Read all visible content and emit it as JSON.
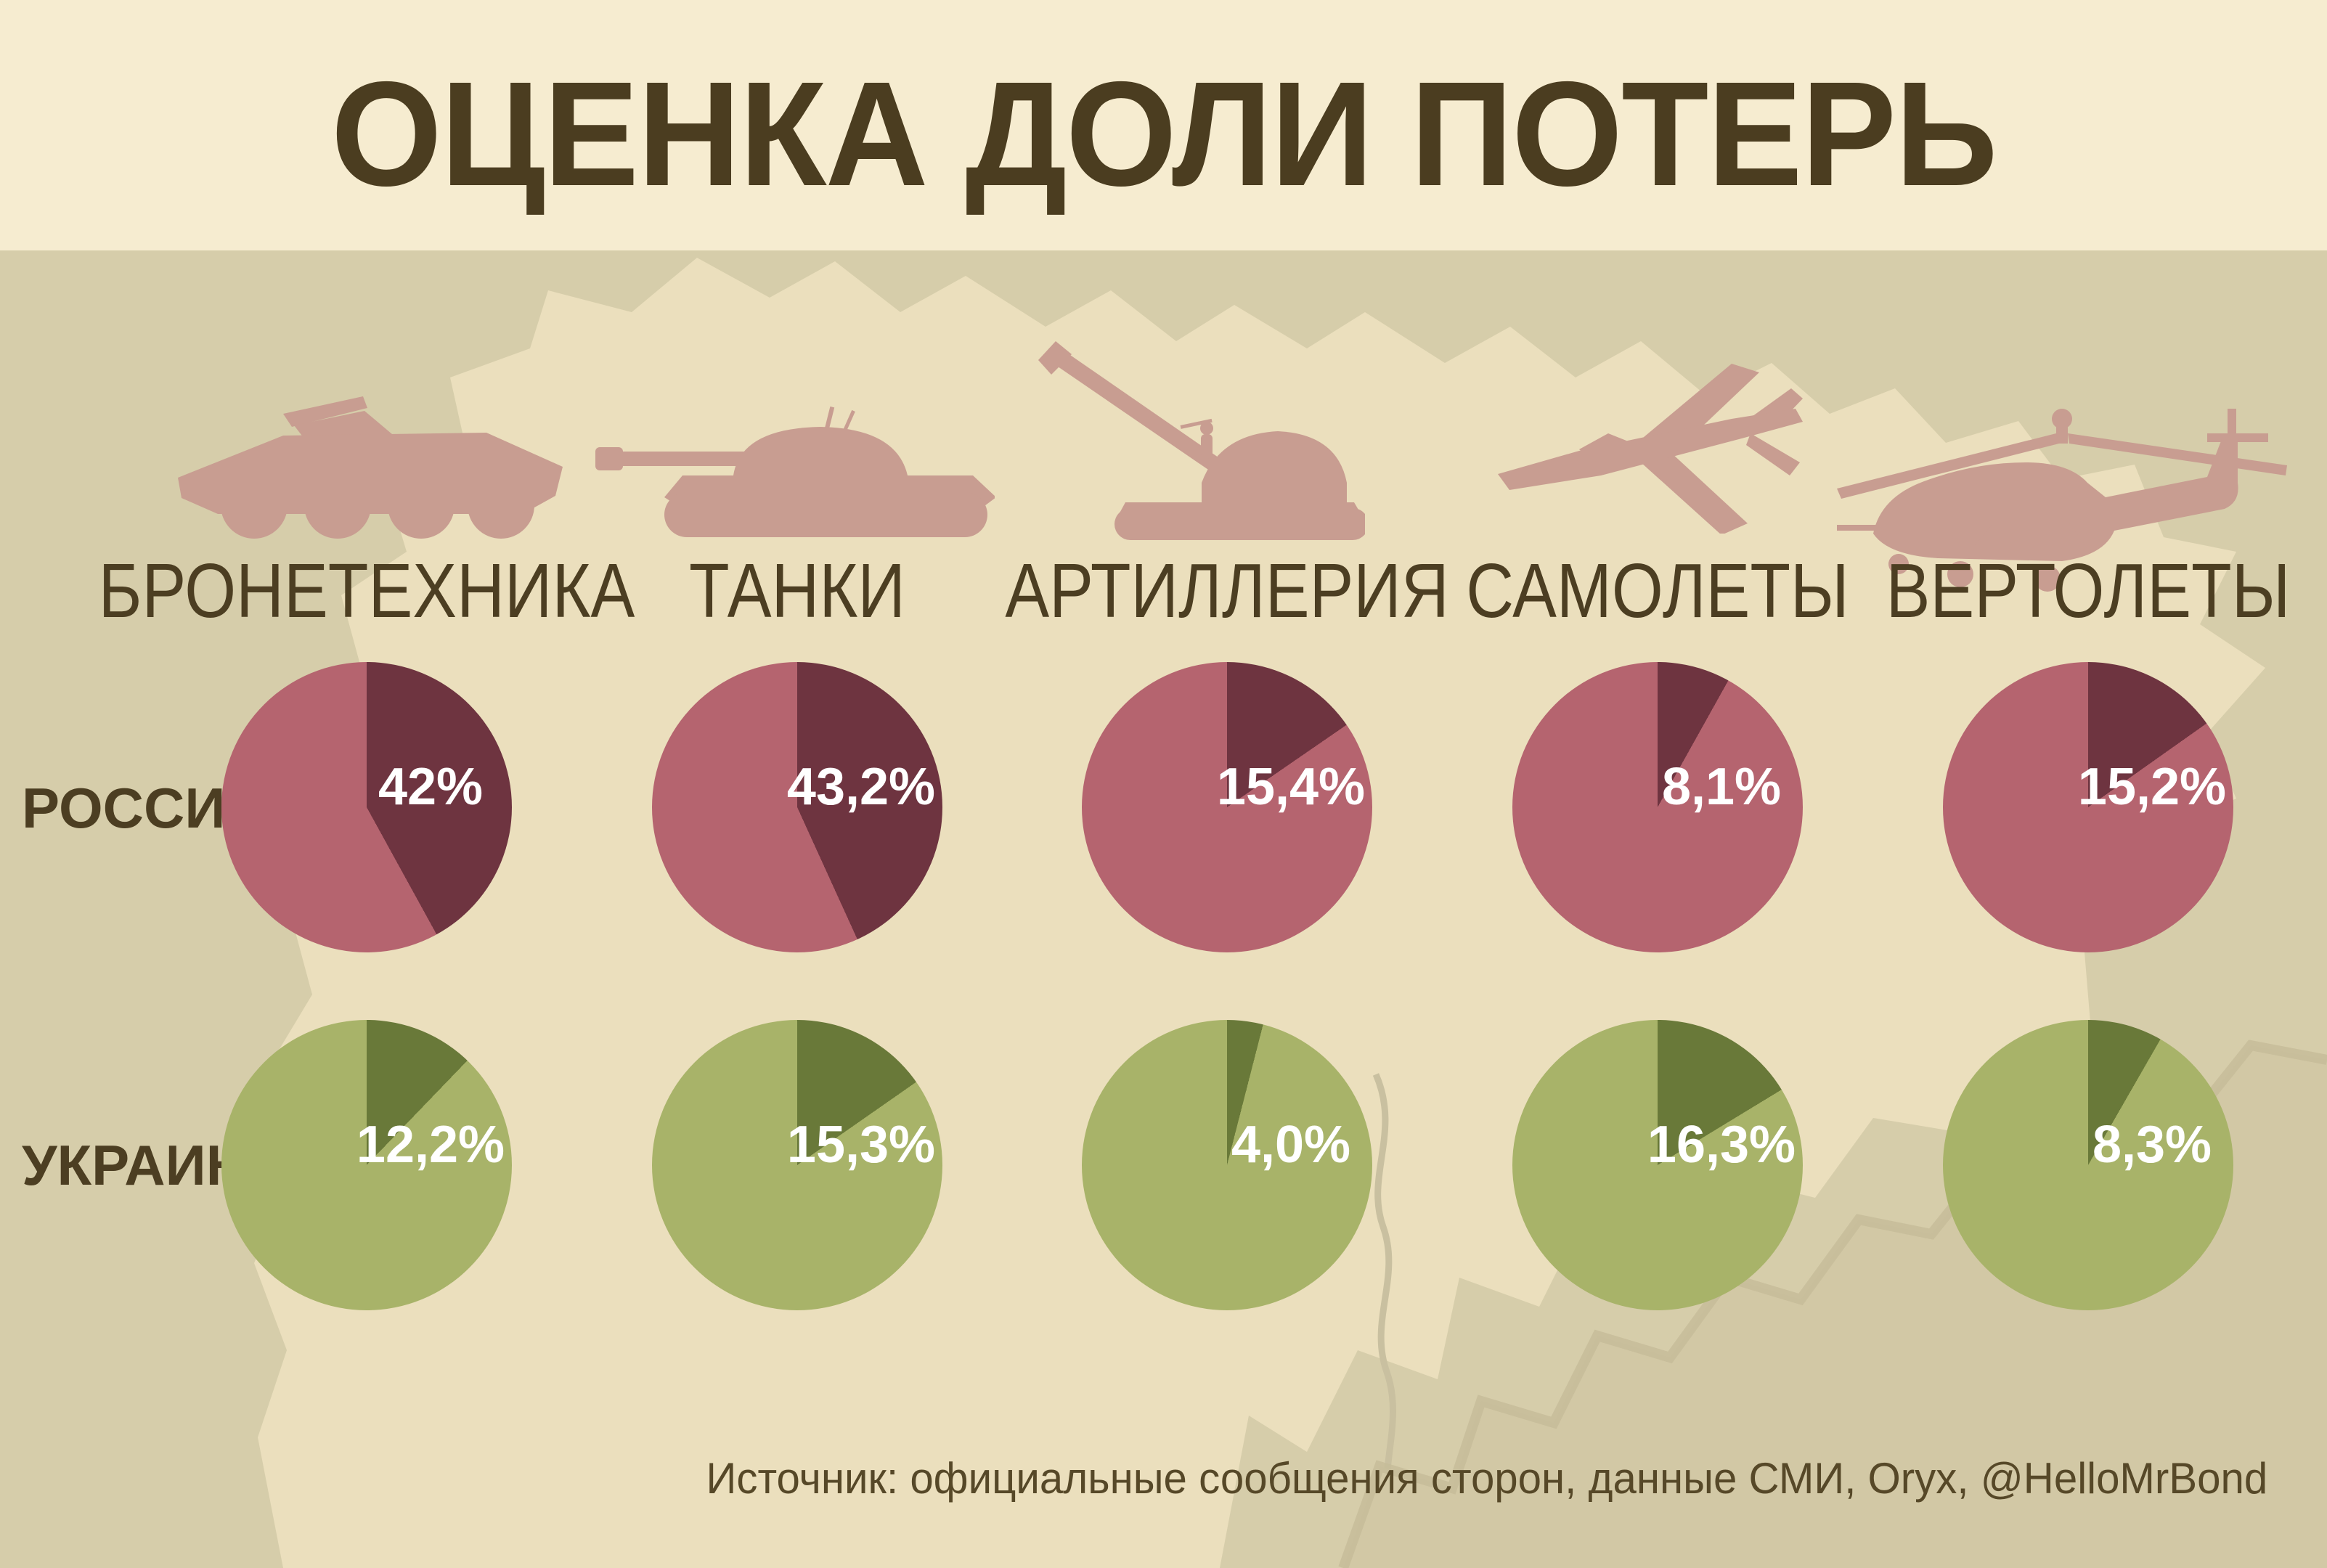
{
  "title": "ОЦЕНКА ДОЛИ ПОТЕРЬ",
  "source": "Источник: официальные сообщения сторон, данные СМИ, Oryx, @HelloMrBond",
  "rows": [
    {
      "id": "russia",
      "label": "РОССИЯ"
    },
    {
      "id": "ukraine",
      "label": "УКРАИНА"
    }
  ],
  "categories": [
    {
      "id": "armored-vehicles",
      "label": "БРОНЕТЕХНИКА",
      "icon": "apc-icon"
    },
    {
      "id": "tanks",
      "label": "ТАНКИ",
      "icon": "tank-icon"
    },
    {
      "id": "artillery",
      "label": "АРТИЛЛЕРИЯ",
      "icon": "artillery-icon"
    },
    {
      "id": "aircraft",
      "label": "САМОЛЕТЫ",
      "icon": "jet-icon"
    },
    {
      "id": "helicopters",
      "label": "ВЕРТОЛЕТЫ",
      "icon": "helicopter-icon"
    }
  ],
  "chart_data": {
    "type": "pie",
    "title": "ОЦЕНКА ДОЛИ ПОТЕРЬ",
    "categories": [
      "БРОНЕТЕХНИКА",
      "ТАНКИ",
      "АРТИЛЛЕРИЯ",
      "САМОЛЕТЫ",
      "ВЕРТОЛЕТЫ"
    ],
    "series": [
      {
        "name": "РОССИЯ",
        "values": [
          42,
          43.2,
          15.4,
          8.1,
          15.2
        ],
        "labels": [
          "42%",
          "43,2%",
          "15,4%",
          "8,1%",
          "15,2%"
        ]
      },
      {
        "name": "УКРАИНА",
        "values": [
          12.2,
          15.3,
          4.0,
          16.3,
          8.3
        ],
        "labels": [
          "12,2%",
          "15,3%",
          "4,0%",
          "16,3%",
          "8,3%"
        ]
      }
    ],
    "slice_start": "top-clockwise",
    "legend_position": "none",
    "grid": false
  },
  "colors": {
    "header_bg": "#f6ecd0",
    "title_text": "#4b3d20",
    "body_bg": "#d6cdaa",
    "map_land": "#ebdfbd",
    "map_sea": "#d2c8a5",
    "map_coast": "#c5bb98",
    "map_river": "#c9c0a0",
    "icon_rose": "#c89d91",
    "russia_light": "#b5646f",
    "russia_dark": "#6e3440",
    "ukraine_light": "#a8b369",
    "ukraine_dark": "#697939",
    "label_text": "#4c3e22",
    "percent_text": "#ffffff",
    "source_text": "#564828"
  }
}
